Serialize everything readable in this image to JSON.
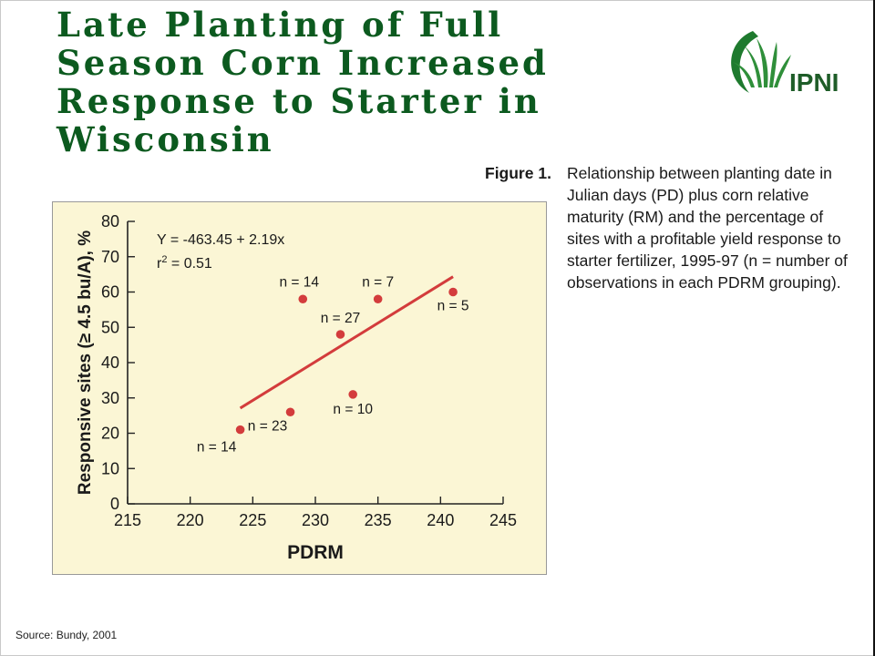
{
  "slide": {
    "title_lines": [
      "Late Planting of Full",
      "Season Corn Increased",
      "Response to Starter in",
      "Wisconsin"
    ],
    "logo_text": "IPNI",
    "caption_label": "Figure 1.",
    "caption_lines": [
      "Relationship between planting date in",
      "Julian days (PD) plus corn relative",
      "maturity (RM) and the percentage of",
      "sites with a profitable yield response to",
      "starter fertilizer, 1995-97 (n = number of",
      "observations in each PDRM grouping)."
    ],
    "source": "Source: Bundy, 2001"
  },
  "colors": {
    "title": "#0c5a1f",
    "chart_background": "#fbf6d5",
    "series": "#d33c3c",
    "logo_green": "#1e7a2e"
  },
  "chart_data": {
    "type": "scatter",
    "xlabel": "PDRM",
    "ylabel": "Responsive sites (≥ 4.5 bu/A), %",
    "xlim": [
      215,
      245
    ],
    "ylim": [
      0,
      80
    ],
    "xticks": [
      215,
      220,
      225,
      230,
      235,
      240,
      245
    ],
    "yticks": [
      0,
      10,
      20,
      30,
      40,
      50,
      60,
      70,
      80
    ],
    "grid": false,
    "points": [
      {
        "x": 224,
        "y": 21,
        "label": "n = 14"
      },
      {
        "x": 228,
        "y": 26,
        "label": "n = 23"
      },
      {
        "x": 229,
        "y": 58,
        "label": "n = 14"
      },
      {
        "x": 232,
        "y": 48,
        "label": "n = 27"
      },
      {
        "x": 233,
        "y": 31,
        "label": "n = 10"
      },
      {
        "x": 235,
        "y": 58,
        "label": "n = 7"
      },
      {
        "x": 241,
        "y": 60,
        "label": "n = 5"
      }
    ],
    "trendline": {
      "x": [
        224,
        241
      ],
      "intercept": -463.45,
      "slope": 2.19
    },
    "annotations": [
      "Y = -463.45 + 2.19x",
      "r2 = 0.51"
    ]
  }
}
